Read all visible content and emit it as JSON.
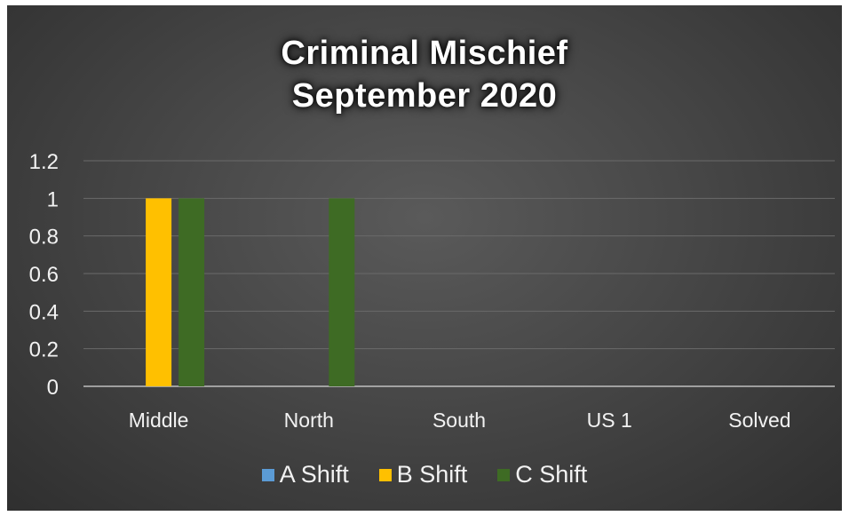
{
  "chart_data": {
    "type": "bar",
    "title_lines": [
      "Criminal Mischief",
      "September 2020"
    ],
    "categories": [
      "Middle",
      "North",
      "South",
      "US 1",
      "Solved"
    ],
    "series": [
      {
        "name": "A Shift",
        "color": "#5b9bd5",
        "values": [
          0,
          0,
          0,
          0,
          0
        ]
      },
      {
        "name": "B Shift",
        "color": "#ffc000",
        "values": [
          1,
          0,
          0,
          0,
          0
        ]
      },
      {
        "name": "C Shift",
        "color": "#3e6b24",
        "values": [
          1,
          1,
          0,
          0,
          0
        ]
      }
    ],
    "y_ticks": [
      "0",
      "0.2",
      "0.4",
      "0.6",
      "0.8",
      "1",
      "1.2"
    ],
    "ylim": [
      0,
      1.2
    ],
    "grid": true,
    "legend_position": "bottom"
  }
}
